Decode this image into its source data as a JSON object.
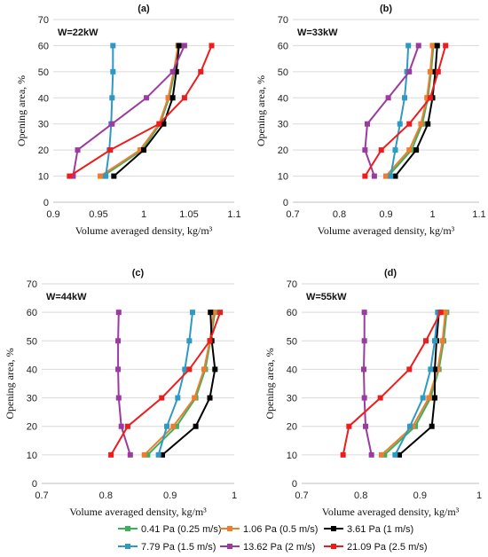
{
  "legend": [
    {
      "name": "0.41 Pa (0.25 m/s)",
      "color": "#3cb15c"
    },
    {
      "name": "1.06 Pa (0.5 m/s)",
      "color": "#ed7d31"
    },
    {
      "name": "3.61 Pa (1 m/s)",
      "color": "#000000"
    },
    {
      "name": "7.79 Pa (1.5 m/s)",
      "color": "#2e9ac4"
    },
    {
      "name": "13.62 Pa (2 m/s)",
      "color": "#9b3ba0"
    },
    {
      "name": "21.09 Pa (2.5 m/s)",
      "color": "#ee1c1c"
    }
  ],
  "chart_data": [
    {
      "type": "line",
      "title": "(a)",
      "annotation": "W=22kW",
      "xlabel": "Volume averaged density, kg/m³",
      "ylabel": "Opening area, %",
      "xlim": [
        0.9,
        1.1
      ],
      "ylim": [
        0,
        70
      ],
      "xticks": [
        "0.9",
        "0.95",
        "1",
        "1.05",
        "1.1"
      ],
      "yticks": [
        "0",
        "10",
        "20",
        "30",
        "40",
        "50",
        "60",
        "70"
      ],
      "y": [
        10,
        20,
        30,
        40,
        50,
        60
      ],
      "series": [
        {
          "name": "0.41 Pa (0.25 m/s)",
          "x": [
            0.955,
            0.998,
            1.018,
            1.028,
            1.034,
            1.038
          ]
        },
        {
          "name": "1.06 Pa (0.5 m/s)",
          "x": [
            0.952,
            0.996,
            1.017,
            1.027,
            1.033,
            1.038
          ]
        },
        {
          "name": "3.61 Pa (1 m/s)",
          "x": [
            0.967,
            1.0,
            1.022,
            1.032,
            1.036,
            1.039
          ]
        },
        {
          "name": "7.79 Pa (1.5 m/s)",
          "x": [
            0.958,
            0.962,
            0.964,
            0.965,
            0.966,
            0.966
          ]
        },
        {
          "name": "13.62 Pa (2 m/s)",
          "x": [
            0.922,
            0.927,
            0.965,
            1.003,
            1.032,
            1.045
          ]
        },
        {
          "name": "21.09 Pa (2.5 m/s)",
          "x": [
            0.918,
            0.963,
            1.017,
            1.045,
            1.063,
            1.075
          ]
        }
      ]
    },
    {
      "type": "line",
      "title": "(b)",
      "annotation": "W=33kW",
      "xlabel": "Volume averaged density, kg/m³",
      "ylabel": "Opening area, %",
      "xlim": [
        0.7,
        1.1
      ],
      "ylim": [
        0,
        70
      ],
      "xticks": [
        "0.7",
        "0.8",
        "0.9",
        "1",
        "1.1"
      ],
      "yticks": [
        "0",
        "10",
        "20",
        "30",
        "40",
        "50",
        "60",
        "70"
      ],
      "y": [
        10,
        20,
        30,
        40,
        50,
        60
      ],
      "series": [
        {
          "name": "0.41 Pa (0.25 m/s)",
          "x": [
            0.905,
            0.955,
            0.978,
            0.99,
            0.997,
            1.002
          ]
        },
        {
          "name": "1.06 Pa (0.5 m/s)",
          "x": [
            0.9,
            0.95,
            0.975,
            0.988,
            0.995,
            1.0
          ]
        },
        {
          "name": "3.61 Pa (1 m/s)",
          "x": [
            0.92,
            0.965,
            0.99,
            1.0,
            1.006,
            1.01
          ]
        },
        {
          "name": "7.79 Pa (1.5 m/s)",
          "x": [
            0.91,
            0.92,
            0.93,
            0.94,
            0.945,
            0.948
          ]
        },
        {
          "name": "13.62 Pa (2 m/s)",
          "x": [
            0.875,
            0.855,
            0.86,
            0.905,
            0.95,
            0.97
          ]
        },
        {
          "name": "21.09 Pa (2.5 m/s)",
          "x": [
            0.855,
            0.89,
            0.95,
            0.995,
            1.012,
            1.028
          ]
        }
      ]
    },
    {
      "type": "line",
      "title": "(c)",
      "annotation": "W=44kW",
      "xlabel": "Volume averaged density, kg/m³",
      "ylabel": "Opening area, %",
      "xlim": [
        0.7,
        1.0
      ],
      "ylim": [
        0,
        70
      ],
      "xticks": [
        "0.7",
        "0.8",
        "0.9",
        "1"
      ],
      "yticks": [
        "0",
        "10",
        "20",
        "30",
        "40",
        "50",
        "60",
        "70"
      ],
      "y": [
        10,
        20,
        30,
        40,
        50,
        60
      ],
      "series": [
        {
          "name": "0.41 Pa (0.25 m/s)",
          "x": [
            0.865,
            0.91,
            0.94,
            0.955,
            0.963,
            0.97
          ]
        },
        {
          "name": "1.06 Pa (0.5 m/s)",
          "x": [
            0.86,
            0.905,
            0.938,
            0.953,
            0.962,
            0.968
          ]
        },
        {
          "name": "3.61 Pa (1 m/s)",
          "x": [
            0.888,
            0.94,
            0.962,
            0.97,
            0.965,
            0.963
          ]
        },
        {
          "name": "7.79 Pa (1.5 m/s)",
          "x": [
            0.882,
            0.895,
            0.912,
            0.923,
            0.93,
            0.935
          ]
        },
        {
          "name": "13.62 Pa (2 m/s)",
          "x": [
            0.838,
            0.824,
            0.82,
            0.819,
            0.819,
            0.82
          ]
        },
        {
          "name": "21.09 Pa (2.5 m/s)",
          "x": [
            0.808,
            0.834,
            0.887,
            0.93,
            0.962,
            0.978
          ]
        }
      ]
    },
    {
      "type": "line",
      "title": "(d)",
      "annotation": "W=55kW",
      "xlabel": "Volume averaged density, kg/m³",
      "ylabel": "Opening area, %",
      "xlim": [
        0.7,
        1.0
      ],
      "ylim": [
        0,
        70
      ],
      "xticks": [
        "0.7",
        "0.8",
        "0.9",
        "1"
      ],
      "yticks": [
        "0",
        "10",
        "20",
        "30",
        "40",
        "50",
        "60",
        "70"
      ],
      "y": [
        10,
        20,
        30,
        40,
        50,
        60
      ],
      "series": [
        {
          "name": "0.41 Pa (0.25 m/s)",
          "x": [
            0.84,
            0.892,
            0.918,
            0.932,
            0.94,
            0.945
          ]
        },
        {
          "name": "1.06 Pa (0.5 m/s)",
          "x": [
            0.835,
            0.888,
            0.915,
            0.93,
            0.938,
            0.943
          ]
        },
        {
          "name": "3.61 Pa (1 m/s)",
          "x": [
            0.865,
            0.92,
            0.925,
            0.925,
            0.928,
            0.932
          ]
        },
        {
          "name": "7.79 Pa (1.5 m/s)",
          "x": [
            0.858,
            0.883,
            0.905,
            0.918,
            0.925,
            0.93
          ]
        },
        {
          "name": "13.62 Pa (2 m/s)",
          "x": [
            0.818,
            0.808,
            0.806,
            0.805,
            0.806,
            0.806
          ]
        },
        {
          "name": "21.09 Pa (2.5 m/s)",
          "x": [
            0.77,
            0.78,
            0.833,
            0.882,
            0.91,
            0.935
          ]
        }
      ]
    }
  ]
}
